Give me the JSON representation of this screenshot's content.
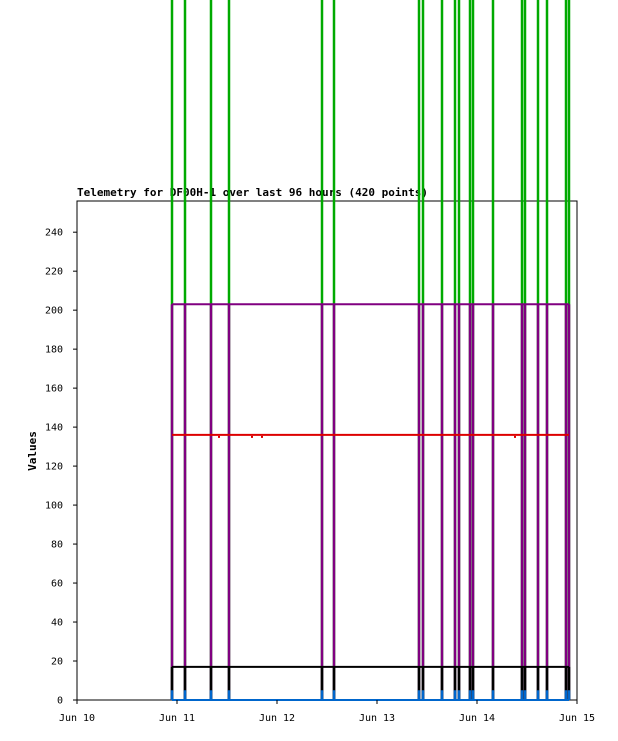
{
  "chart_data": {
    "type": "line",
    "title": "Telemetry for DF00H-1 over last 96 hours (420 points)",
    "xlabel": "",
    "ylabel": "Values",
    "xlim": [
      "Jun 10",
      "Jun 15"
    ],
    "ylim": [
      0,
      256
    ],
    "x_ticks": [
      "Jun 10",
      "Jun 11",
      "Jun 12",
      "Jun 13",
      "Jun 14",
      "Jun 15"
    ],
    "y_ticks": [
      0,
      20,
      40,
      60,
      80,
      100,
      120,
      140,
      160,
      180,
      200,
      220,
      240
    ],
    "grid": false,
    "legend": "none",
    "data_start_day": 10.95,
    "data_end_day": 14.92,
    "spike_days": [
      10.95,
      11.08,
      11.34,
      11.52,
      12.45,
      12.57,
      13.42,
      13.46,
      13.65,
      13.78,
      13.82,
      13.93,
      13.96,
      14.16,
      14.45,
      14.48,
      14.61,
      14.7,
      14.89,
      14.92
    ],
    "series": [
      {
        "color": "#00aa00",
        "baseline": 0,
        "spike_value": 500
      },
      {
        "color": "#800080",
        "baseline": 203,
        "dip_value": 0
      },
      {
        "color": "#dd0000",
        "baseline": 136
      },
      {
        "color": "#000000",
        "baseline": 17,
        "dip_value": 0
      },
      {
        "color": "#0066cc",
        "baseline": 0,
        "spike_value": 5
      }
    ]
  }
}
